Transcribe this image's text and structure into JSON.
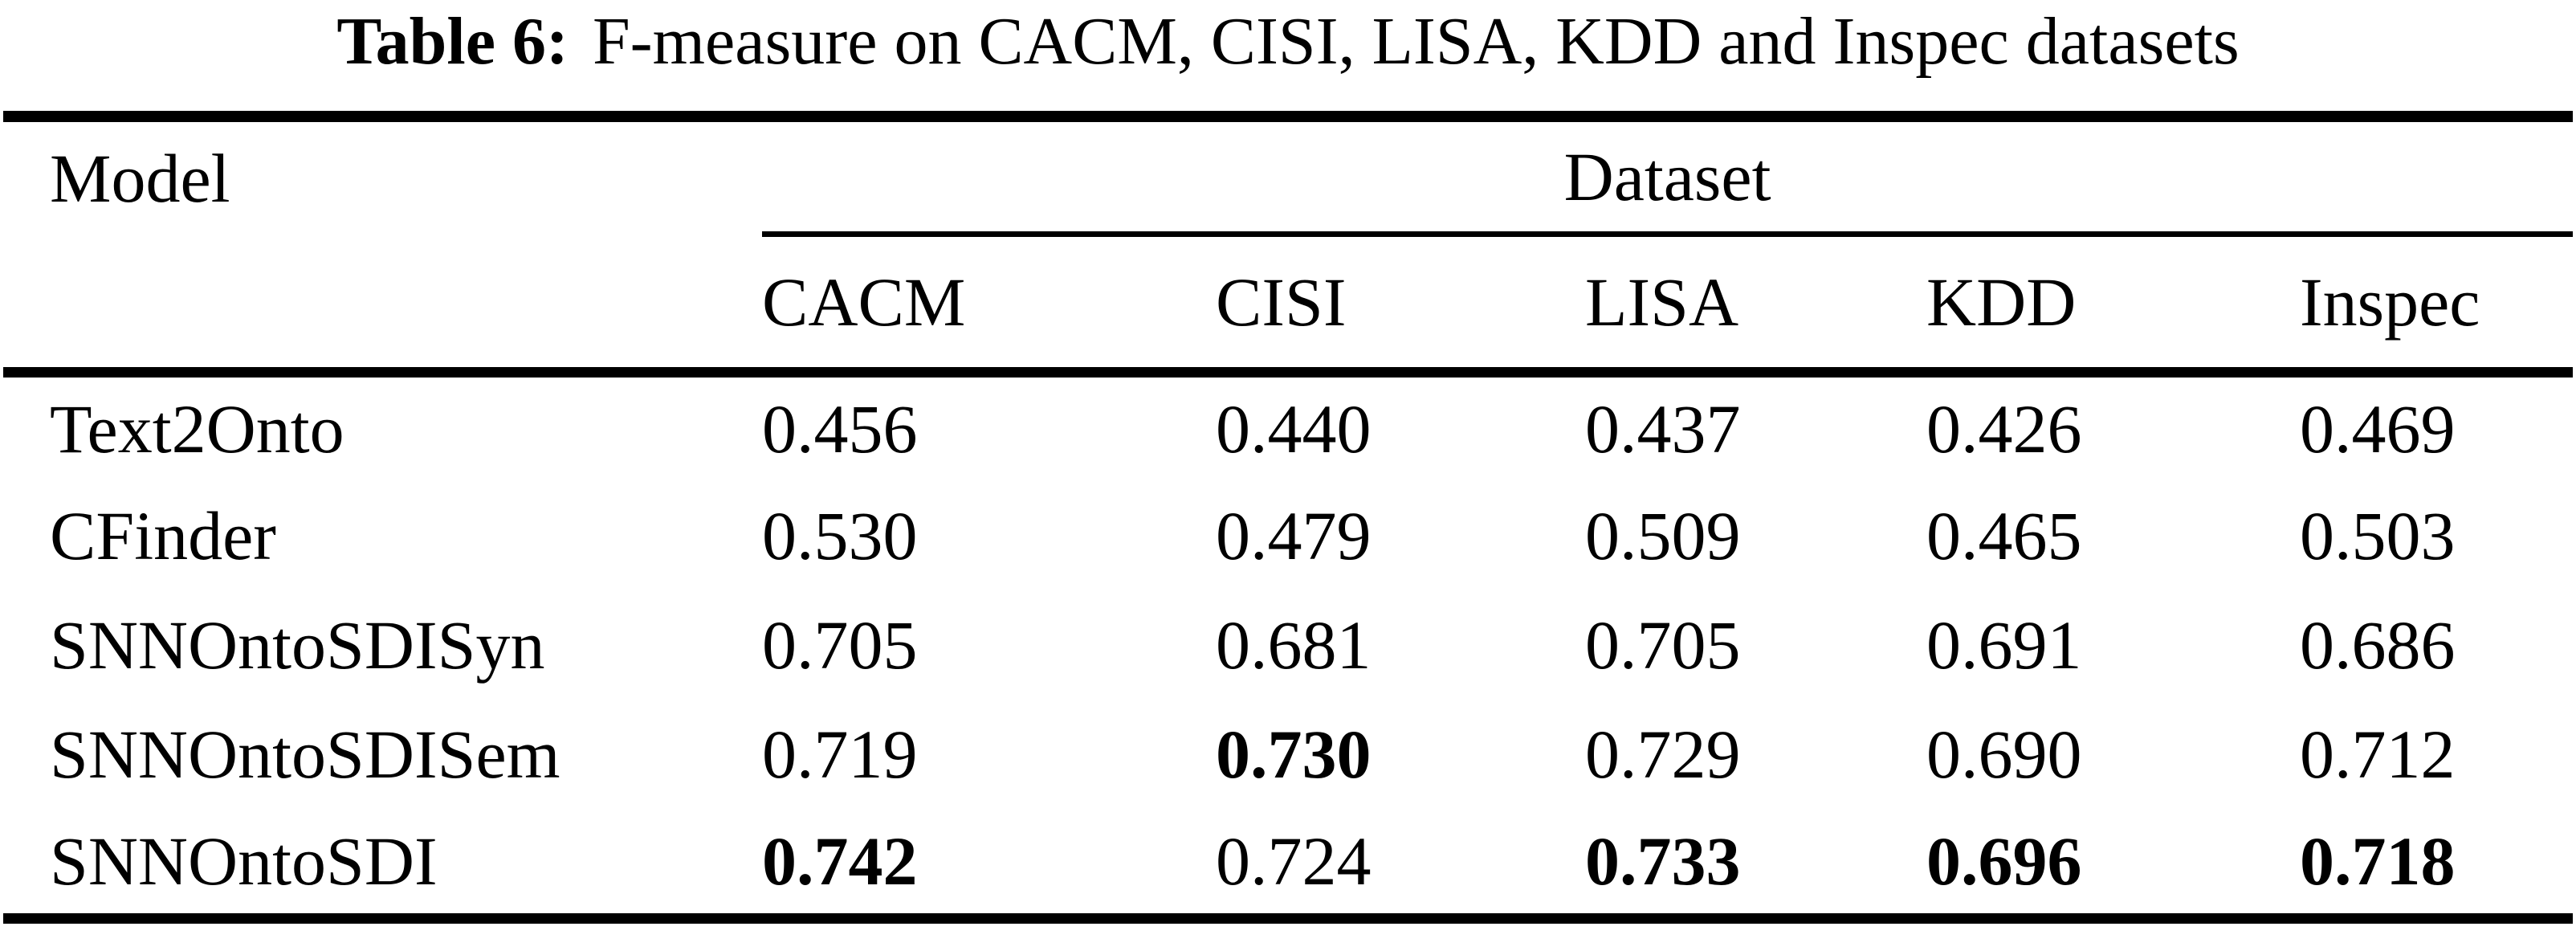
{
  "caption": {
    "label": "Table 6:",
    "text": "F-measure on CACM, CISI, LISA, KDD and Inspec datasets"
  },
  "table": {
    "col1_header": "Model",
    "span_header": "Dataset",
    "dataset_headers": [
      "CACM",
      "CISI",
      "LISA",
      "KDD",
      "Inspec"
    ],
    "rows": [
      {
        "model": "Text2Onto",
        "values": [
          "0.456",
          "0.440",
          "0.437",
          "0.426",
          "0.469"
        ],
        "bold": [
          false,
          false,
          false,
          false,
          false
        ]
      },
      {
        "model": "CFinder",
        "values": [
          "0.530",
          "0.479",
          "0.509",
          "0.465",
          "0.503"
        ],
        "bold": [
          false,
          false,
          false,
          false,
          false
        ]
      },
      {
        "model": "SNNOntoSDISyn",
        "values": [
          "0.705",
          "0.681",
          "0.705",
          "0.691",
          "0.686"
        ],
        "bold": [
          false,
          false,
          false,
          false,
          false
        ]
      },
      {
        "model": "SNNOntoSDISem",
        "values": [
          "0.719",
          "0.730",
          "0.729",
          "0.690",
          "0.712"
        ],
        "bold": [
          false,
          true,
          false,
          false,
          false
        ]
      },
      {
        "model": "SNNOntoSDI",
        "values": [
          "0.742",
          "0.724",
          "0.733",
          "0.696",
          "0.718"
        ],
        "bold": [
          true,
          false,
          true,
          true,
          true
        ]
      }
    ]
  },
  "chart_data": {
    "type": "table",
    "title": "Table 6: F-measure on CACM, CISI, LISA, KDD and Inspec datasets",
    "columns": [
      "Model",
      "CACM",
      "CISI",
      "LISA",
      "KDD",
      "Inspec"
    ],
    "rows": [
      [
        "Text2Onto",
        0.456,
        0.44,
        0.437,
        0.426,
        0.469
      ],
      [
        "CFinder",
        0.53,
        0.479,
        0.509,
        0.465,
        0.503
      ],
      [
        "SNNOntoSDISyn",
        0.705,
        0.681,
        0.705,
        0.691,
        0.686
      ],
      [
        "SNNOntoSDISem",
        0.719,
        0.73,
        0.729,
        0.69,
        0.712
      ],
      [
        "SNNOntoSDI",
        0.742,
        0.724,
        0.733,
        0.696,
        0.718
      ]
    ],
    "bold_best": [
      "SNNOntoSDI CACM 0.742",
      "SNNOntoSDISem CISI 0.730",
      "SNNOntoSDI LISA 0.733",
      "SNNOntoSDI KDD 0.696",
      "SNNOntoSDI Inspec 0.718"
    ]
  },
  "colors": {
    "text": "#000000",
    "background": "#ffffff",
    "rule": "#000000"
  }
}
